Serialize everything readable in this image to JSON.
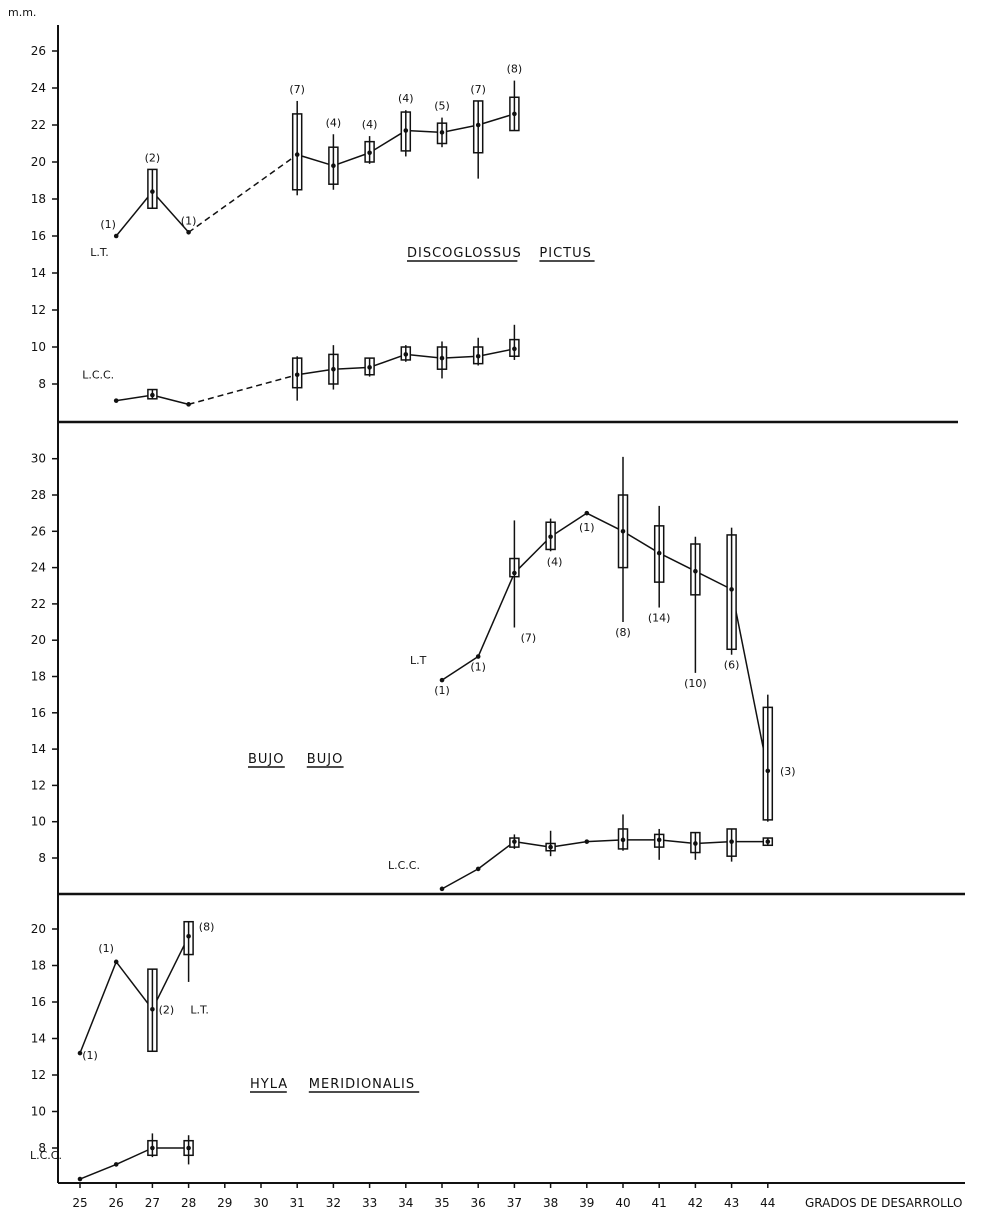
{
  "unit_label": "m.m.",
  "x_axis_label": "GRADOS DE DESARROLLO",
  "chart_data": [
    {
      "type": "line",
      "title": "DISCOGLOSSUS PICTUS",
      "ylabel": "m.m.",
      "xlabel": "GRADOS DE DESARROLLO",
      "y_ticks": [
        8,
        10,
        12,
        14,
        16,
        18,
        20,
        22,
        24,
        26
      ],
      "ylim": [
        6,
        27.5
      ],
      "x_ticks": [
        25,
        26,
        27,
        28,
        29,
        30,
        31,
        32,
        33,
        34,
        35,
        36,
        37,
        38,
        39,
        40,
        41,
        42,
        43,
        44
      ],
      "xlim": [
        25,
        44
      ],
      "series": [
        {
          "name": "L.T.",
          "x": [
            26,
            27,
            28,
            31,
            32,
            33,
            34,
            35,
            36,
            37
          ],
          "y": [
            16,
            18.4,
            16.2,
            20.4,
            19.8,
            20.5,
            21.7,
            21.6,
            22,
            22.6
          ],
          "n_labels": [
            "(1)",
            "(2)",
            "(1)",
            "(7)",
            "(4)",
            "(4)",
            "(4)",
            "(5)",
            "(7)",
            "(8)"
          ],
          "dashed_x_range": [
            28,
            31
          ],
          "boxes": [
            [
              27,
              17.5,
              19.6
            ],
            [
              31,
              18.5,
              22.6
            ],
            [
              32,
              18.8,
              20.8
            ],
            [
              33,
              20,
              21.1
            ],
            [
              34,
              20.6,
              22.7
            ],
            [
              35,
              21,
              22.1
            ],
            [
              36,
              20.5,
              23.3
            ],
            [
              37,
              21.7,
              23.5
            ]
          ],
          "ranges": [
            [
              31,
              18.2,
              23.3
            ],
            [
              32,
              18.5,
              21.5
            ],
            [
              33,
              19.9,
              21.4
            ],
            [
              34,
              20.3,
              22.8
            ],
            [
              35,
              20.8,
              22.4
            ],
            [
              36,
              19.1,
              23.3
            ],
            [
              37,
              21.7,
              24.4
            ]
          ]
        },
        {
          "name": "L.C.C.",
          "x": [
            26,
            27,
            28,
            31,
            32,
            33,
            34,
            35,
            36,
            37
          ],
          "y": [
            7.1,
            7.4,
            6.9,
            8.5,
            8.8,
            8.9,
            9.6,
            9.4,
            9.5,
            9.9
          ],
          "dashed_x_range": [
            28,
            31
          ],
          "boxes": [
            [
              27,
              7.2,
              7.7
            ],
            [
              31,
              7.8,
              9.4
            ],
            [
              32,
              8,
              9.6
            ],
            [
              33,
              8.5,
              9.4
            ],
            [
              34,
              9.3,
              10
            ],
            [
              35,
              8.8,
              10
            ],
            [
              36,
              9.1,
              10
            ],
            [
              37,
              9.5,
              10.4
            ]
          ],
          "ranges": [
            [
              31,
              7.1,
              9.5
            ],
            [
              32,
              7.7,
              10.1
            ],
            [
              33,
              8.4,
              9.4
            ],
            [
              34,
              9.2,
              10.1
            ],
            [
              35,
              8.3,
              10.3
            ],
            [
              36,
              9,
              10.5
            ],
            [
              37,
              9.3,
              11.2
            ]
          ]
        }
      ]
    },
    {
      "type": "line",
      "title": "BUJO BUJO",
      "ylabel": "m.m.",
      "xlabel": "GRADOS DE DESARROLLO",
      "y_ticks": [
        8,
        10,
        12,
        14,
        16,
        18,
        20,
        22,
        24,
        26,
        28,
        30
      ],
      "ylim": [
        6,
        31.5
      ],
      "x_ticks": [
        25,
        26,
        27,
        28,
        29,
        30,
        31,
        32,
        33,
        34,
        35,
        36,
        37,
        38,
        39,
        40,
        41,
        42,
        43,
        44
      ],
      "xlim": [
        25,
        44
      ],
      "series": [
        {
          "name": "L.T",
          "x": [
            35,
            36,
            37,
            38,
            39,
            40,
            41,
            42,
            43,
            44
          ],
          "y": [
            17.8,
            19.1,
            23.7,
            25.7,
            27,
            26,
            24.8,
            23.8,
            22.8,
            12.8
          ],
          "n_labels": [
            "(1)",
            "(1)",
            "(7)",
            "(4)",
            "(1)",
            "(8)",
            "(14)",
            "(10)",
            "(6)",
            "(3)"
          ],
          "boxes": [
            [
              37,
              23.5,
              24.5
            ],
            [
              38,
              25,
              26.5
            ],
            [
              40,
              24,
              28
            ],
            [
              41,
              23.2,
              26.3
            ],
            [
              42,
              22.5,
              25.3
            ],
            [
              43,
              19.5,
              25.8
            ],
            [
              44,
              10.1,
              16.3
            ]
          ],
          "ranges": [
            [
              37,
              20.7,
              26.6
            ],
            [
              38,
              24.9,
              26.7
            ],
            [
              40,
              21,
              30.1
            ],
            [
              41,
              21.8,
              27.4
            ],
            [
              42,
              18.2,
              25.7
            ],
            [
              43,
              19.2,
              26.2
            ],
            [
              44,
              10,
              17
            ]
          ]
        },
        {
          "name": "L.C.C.",
          "x": [
            35,
            36,
            37,
            38,
            39,
            40,
            41,
            42,
            43,
            44
          ],
          "y": [
            6.3,
            7.4,
            8.9,
            8.6,
            8.9,
            9,
            9,
            8.8,
            8.9,
            8.9
          ],
          "boxes": [
            [
              37,
              8.6,
              9.1
            ],
            [
              38,
              8.4,
              8.8
            ],
            [
              40,
              8.5,
              9.6
            ],
            [
              41,
              8.6,
              9.3
            ],
            [
              42,
              8.3,
              9.4
            ],
            [
              43,
              8.1,
              9.6
            ],
            [
              44,
              8.7,
              9.1
            ]
          ],
          "ranges": [
            [
              37,
              8.5,
              9.3
            ],
            [
              38,
              8.1,
              9.5
            ],
            [
              40,
              8.4,
              10.4
            ],
            [
              41,
              7.9,
              9.6
            ],
            [
              42,
              7.9,
              9.4
            ],
            [
              43,
              7.8,
              9.6
            ]
          ]
        }
      ]
    },
    {
      "type": "line",
      "title": "HYLA MERIDIONALIS",
      "ylabel": "m.m.",
      "xlabel": "GRADOS DE DESARROLLO",
      "y_ticks": [
        8,
        10,
        12,
        14,
        16,
        18,
        20
      ],
      "ylim": [
        6,
        21.5
      ],
      "x_ticks": [
        25,
        26,
        27,
        28,
        29,
        30,
        31,
        32,
        33,
        34,
        35,
        36,
        37,
        38,
        39,
        40,
        41,
        42,
        43,
        44
      ],
      "xlim": [
        25,
        44
      ],
      "series": [
        {
          "name": "L.T.",
          "x": [
            25,
            26,
            27,
            28
          ],
          "y": [
            13.2,
            18.2,
            15.6,
            19.6
          ],
          "n_labels": [
            "(1)",
            "(1)",
            "(2)",
            "(8)"
          ],
          "boxes": [
            [
              27,
              13.3,
              17.8
            ],
            [
              28,
              18.6,
              20.4
            ]
          ],
          "ranges": [
            [
              27,
              14.2,
              17.4
            ],
            [
              28,
              17.1,
              20.4
            ]
          ]
        },
        {
          "name": "L.C.C.",
          "x": [
            25,
            26,
            27,
            28
          ],
          "y": [
            6.3,
            7.1,
            8,
            8
          ],
          "boxes": [
            [
              27,
              7.6,
              8.4
            ],
            [
              28,
              7.6,
              8.4
            ]
          ],
          "ranges": [
            [
              27,
              7.5,
              8.8
            ],
            [
              28,
              7.1,
              8.7
            ]
          ]
        }
      ]
    }
  ]
}
